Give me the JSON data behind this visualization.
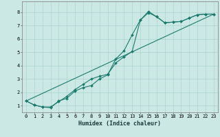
{
  "xlabel": "Humidex (Indice chaleur)",
  "bg_color": "#cce8e4",
  "grid_color": "#aad4cf",
  "line_color": "#1a7a6e",
  "xlim": [
    -0.5,
    23.5
  ],
  "ylim": [
    0.5,
    8.8
  ],
  "xticks": [
    0,
    1,
    2,
    3,
    4,
    5,
    6,
    7,
    8,
    9,
    10,
    11,
    12,
    13,
    14,
    15,
    16,
    17,
    18,
    19,
    20,
    21,
    22,
    23
  ],
  "yticks": [
    1,
    2,
    3,
    4,
    5,
    6,
    7,
    8
  ],
  "line1_x": [
    0,
    1,
    2,
    3,
    4,
    5,
    6,
    7,
    8,
    9,
    10,
    11,
    12,
    13,
    14,
    15,
    16,
    17,
    18,
    19,
    20,
    21,
    22,
    23
  ],
  "line1_y": [
    1.35,
    1.05,
    0.9,
    0.85,
    1.35,
    1.55,
    2.1,
    2.35,
    2.5,
    3.0,
    3.3,
    4.5,
    5.1,
    6.3,
    7.4,
    7.95,
    7.65,
    7.2,
    7.25,
    7.3,
    7.55,
    7.8,
    7.85,
    7.85
  ],
  "line2_x": [
    0,
    1,
    2,
    3,
    4,
    5,
    6,
    7,
    8,
    9,
    10,
    11,
    12,
    13,
    14,
    15,
    16,
    17,
    18,
    19,
    20,
    21,
    22,
    23
  ],
  "line2_y": [
    1.35,
    1.05,
    0.9,
    0.9,
    1.3,
    1.7,
    2.2,
    2.6,
    3.0,
    3.2,
    3.35,
    4.2,
    4.65,
    5.05,
    7.4,
    8.05,
    7.65,
    7.2,
    7.25,
    7.3,
    7.55,
    7.8,
    7.85,
    7.85
  ],
  "line3_x": [
    0,
    23
  ],
  "line3_y": [
    1.35,
    7.85
  ],
  "marker": "D",
  "markersize": 2.0,
  "linewidth": 0.8,
  "xlabel_fontsize": 6.0,
  "tick_fontsize": 5.0
}
